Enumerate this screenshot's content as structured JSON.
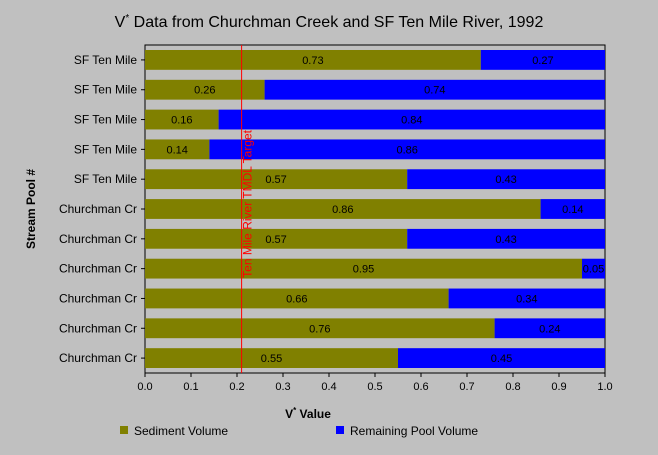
{
  "chart_data": {
    "type": "bar",
    "orientation": "horizontal",
    "stacked": true,
    "title": "V* Data from Churchman Creek and SF Ten Mile River, 1992",
    "xlabel": "V* Value",
    "ylabel": "Stream Pool #",
    "xlim": [
      0,
      1.0
    ],
    "xticks": [
      "0.0",
      "0.1",
      "0.2",
      "0.3",
      "0.4",
      "0.5",
      "0.6",
      "0.7",
      "0.8",
      "0.9",
      "1.0"
    ],
    "grid": false,
    "legend_position": "bottom",
    "categories": [
      "SF Ten Mile",
      "SF Ten Mile",
      "SF Ten Mile",
      "SF Ten Mile",
      "SF Ten Mile",
      "Churchman Cr",
      "Churchman Cr",
      "Churchman Cr",
      "Churchman Cr",
      "Churchman Cr",
      "Churchman Cr"
    ],
    "series": [
      {
        "name": "Sediment Volume",
        "color": "#808000",
        "values": [
          0.73,
          0.26,
          0.16,
          0.14,
          0.57,
          0.86,
          0.57,
          0.95,
          0.66,
          0.76,
          0.55
        ],
        "labels": [
          "0.73",
          "0.26",
          "0.16",
          "0.14",
          "0.57",
          "0.86",
          "0.57",
          "0.95",
          "0.66",
          "0.76",
          "0.55"
        ]
      },
      {
        "name": "Remaining Pool Volume",
        "color": "#0000ff",
        "values": [
          0.27,
          0.74,
          0.84,
          0.86,
          0.43,
          0.14,
          0.43,
          0.05,
          0.34,
          0.24,
          0.45
        ],
        "labels": [
          "0.27",
          "0.74",
          "0.84",
          "0.86",
          "0.43",
          "0.14",
          "0.43",
          "0.05",
          "0.34",
          "0.24",
          "0.45"
        ]
      }
    ],
    "reference_line": {
      "x": 0.21,
      "label": "Ten Mile River TMDL Target",
      "color": "#ff0000"
    }
  }
}
